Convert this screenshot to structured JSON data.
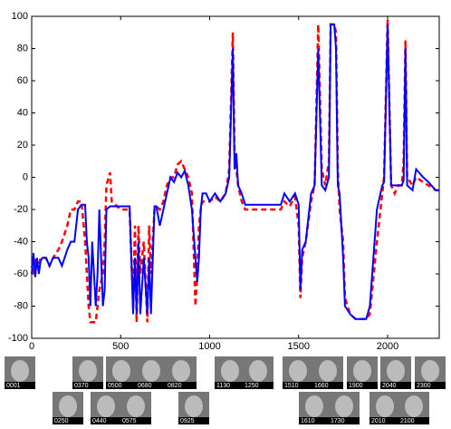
{
  "chart_data": {
    "type": "line",
    "x": [
      0,
      10,
      20,
      30,
      40,
      50,
      60,
      80,
      100,
      120,
      150,
      170,
      200,
      220,
      240,
      260,
      280,
      300,
      310,
      320,
      330,
      340,
      350,
      360,
      370,
      380,
      400,
      410,
      420,
      440,
      450,
      500,
      550,
      570,
      580,
      590,
      600,
      610,
      630,
      650,
      660,
      670,
      690,
      700,
      720,
      740,
      760,
      780,
      800,
      820,
      840,
      860,
      880,
      900,
      920,
      930,
      940,
      950,
      960,
      980,
      1000,
      1030,
      1060,
      1090,
      1110,
      1130,
      1140,
      1150,
      1160,
      1180,
      1200,
      1250,
      1300,
      1350,
      1400,
      1420,
      1450,
      1480,
      1500,
      1510,
      1520,
      1540,
      1570,
      1590,
      1610,
      1630,
      1650,
      1670,
      1680,
      1700,
      1710,
      1720,
      1730,
      1750,
      1760,
      1790,
      1820,
      1880,
      1900,
      1940,
      1970,
      1980,
      2000,
      2020,
      2040,
      2060,
      2080,
      2090,
      2100,
      2110,
      2140,
      2160,
      2200,
      2230,
      2270,
      2290
    ],
    "series": [
      {
        "color": "#0000ff",
        "dash": false,
        "values": [
          -60,
          -47,
          -62,
          -50,
          -60,
          -52,
          -50,
          -50,
          -55,
          -50,
          -50,
          -55,
          -45,
          -40,
          -40,
          -20,
          -17,
          -17,
          -40,
          -50,
          -80,
          -40,
          -60,
          -80,
          -60,
          -20,
          -80,
          -70,
          -20,
          -18,
          -18,
          -18,
          -18,
          -85,
          -50,
          -85,
          -40,
          -85,
          -50,
          -85,
          -50,
          -85,
          -18,
          -18,
          -30,
          -20,
          -10,
          0,
          -3,
          3,
          0,
          4,
          -5,
          -20,
          -50,
          -65,
          -50,
          -20,
          -10,
          -10,
          -15,
          -10,
          -15,
          -10,
          0,
          80,
          5,
          15,
          -5,
          -10,
          -17,
          -17,
          -17,
          -17,
          -17,
          -10,
          -15,
          -10,
          -17,
          -70,
          -45,
          -40,
          -10,
          -5,
          80,
          -5,
          -8,
          0,
          95,
          95,
          80,
          -5,
          -10,
          -50,
          -80,
          -85,
          -88,
          -88,
          -80,
          -20,
          -5,
          -3,
          95,
          -5,
          -5,
          -5,
          -5,
          -2,
          80,
          -5,
          -8,
          5,
          0,
          -3,
          -8,
          -8
        ]
      },
      {
        "color": "#ff0000",
        "dash": true,
        "values": [
          -55,
          -60,
          -50,
          -55,
          -55,
          -50,
          -50,
          -50,
          -55,
          -50,
          -45,
          -40,
          -30,
          -20,
          -20,
          -15,
          -15,
          -40,
          -60,
          -80,
          -90,
          -90,
          -90,
          -90,
          -80,
          -70,
          -60,
          -40,
          -5,
          3,
          -15,
          -20,
          -20,
          -80,
          -30,
          -90,
          -30,
          -60,
          -40,
          -90,
          -30,
          -60,
          -20,
          -18,
          -20,
          -15,
          -5,
          0,
          0,
          8,
          10,
          5,
          0,
          -10,
          -80,
          -60,
          -30,
          -20,
          -15,
          -15,
          -15,
          -12,
          -15,
          -10,
          5,
          90,
          15,
          5,
          -5,
          -15,
          -20,
          -20,
          -20,
          -20,
          -20,
          -15,
          -18,
          -12,
          -30,
          -75,
          -50,
          -40,
          -15,
          -5,
          95,
          5,
          -5,
          10,
          95,
          95,
          90,
          5,
          -20,
          -40,
          -75,
          -85,
          -88,
          -88,
          -85,
          -40,
          -10,
          0,
          98,
          -5,
          -10,
          -5,
          -5,
          10,
          85,
          0,
          -5,
          0,
          -3,
          -5,
          -8,
          -8
        ]
      }
    ],
    "xlim": [
      0,
      2290
    ],
    "xticks": [
      0,
      500,
      1000,
      1500,
      2000
    ],
    "ylim": [
      -100,
      100
    ],
    "yticks": [
      -100,
      -80,
      -60,
      -40,
      -20,
      0,
      20,
      40,
      60,
      80,
      100
    ]
  },
  "thumbnails": [
    "0001",
    "0250",
    "0370",
    "0440",
    "0500",
    "0575",
    "0680",
    "0820",
    "0925",
    "1130",
    "1250",
    "1510",
    "1610",
    "1660",
    "1730",
    "1900",
    "2010",
    "2040",
    "2100",
    "2300"
  ]
}
